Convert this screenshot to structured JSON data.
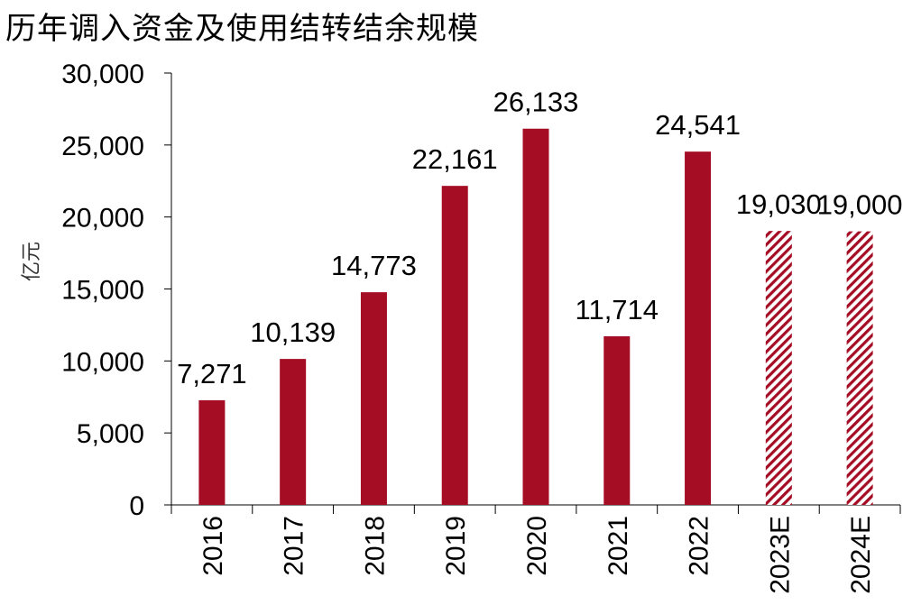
{
  "title": "历年调入资金及使用结转结余规模",
  "chart_data": {
    "type": "bar",
    "title": "历年调入资金及使用结转结余规模",
    "ylabel": "亿元",
    "xlabel": "",
    "ylim": [
      0,
      30000
    ],
    "yticks": [
      0,
      5000,
      10000,
      15000,
      20000,
      25000,
      30000
    ],
    "ytick_labels": [
      "0",
      "5,000",
      "10,000",
      "15,000",
      "20,000",
      "25,000",
      "30,000"
    ],
    "categories": [
      "2016",
      "2017",
      "2018",
      "2019",
      "2020",
      "2021",
      "2022",
      "2023E",
      "2024E"
    ],
    "values": [
      7271,
      10139,
      14773,
      22161,
      26133,
      11714,
      24541,
      19030,
      19000
    ],
    "value_labels": [
      "7,271",
      "10,139",
      "14,773",
      "22,161",
      "26,133",
      "11,714",
      "24,541",
      "19,030",
      "19,000"
    ],
    "estimated": [
      false,
      false,
      false,
      false,
      false,
      false,
      false,
      true,
      true
    ],
    "bar_color": "#A50D24",
    "grid": false,
    "legend": "none"
  }
}
